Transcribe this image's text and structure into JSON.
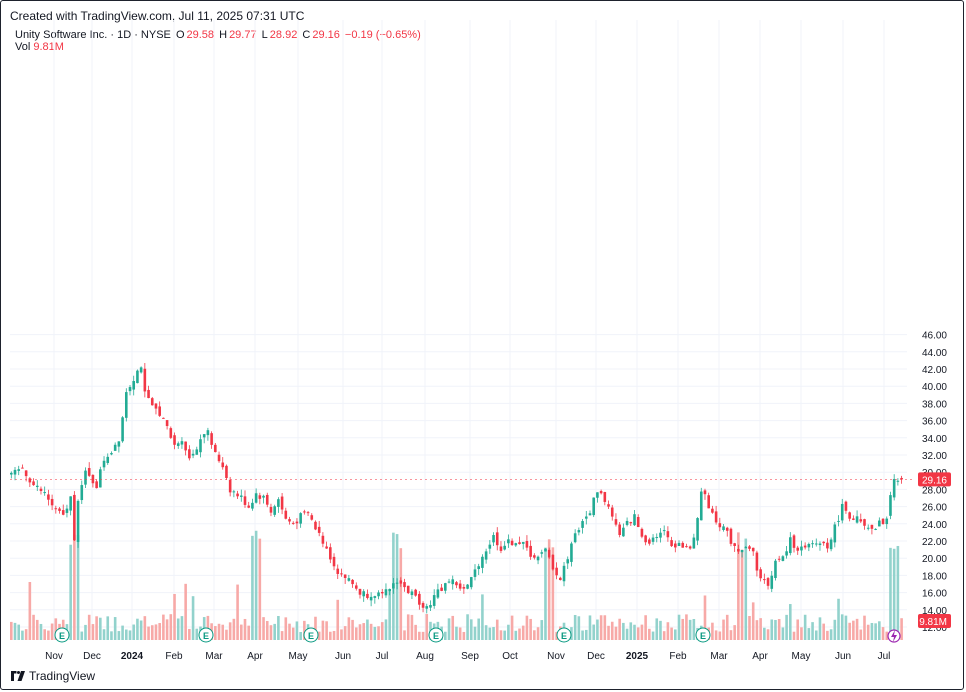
{
  "header": {
    "created": "Created with TradingView.com, Jul 11, 2025 07:31 UTC"
  },
  "legend": {
    "symbol": "Unity Software Inc. · 1D · NYSE",
    "o_label": "O",
    "o_value": "29.58",
    "h_label": "H",
    "h_value": "29.77",
    "l_label": "L",
    "l_value": "28.92",
    "c_label": "C",
    "c_value": "29.16",
    "change": "−0.19 (−0.65%)",
    "vol_label": "Vol",
    "vol_value": "9.81M"
  },
  "footer": {
    "brand": "TradingView"
  },
  "colors": {
    "up": "#22ab94",
    "down": "#f23645",
    "up_vol": "#92d2cc",
    "down_vol": "#f7a9a7",
    "grid": "#f0f3fa"
  },
  "chart_data": {
    "type": "candlestick",
    "ylim": [
      11.5,
      46.5
    ],
    "y_ticks": [
      "12.00",
      "14.00",
      "16.00",
      "18.00",
      "20.00",
      "22.00",
      "24.00",
      "26.00",
      "28.00",
      "30.00",
      "32.00",
      "34.00",
      "36.00",
      "38.00",
      "40.00",
      "42.00",
      "44.00",
      "46.00"
    ],
    "x_ticks": [
      "Nov",
      "Dec",
      "2024",
      "Feb",
      "Mar",
      "Apr",
      "May",
      "Jun",
      "Jul",
      "Aug",
      "Sep",
      "Oct",
      "Nov",
      "Dec",
      "2025",
      "Feb",
      "Mar",
      "Apr",
      "May",
      "Jun",
      "Jul"
    ],
    "last_price_label": "29.16",
    "last_volume_label": "9.81M",
    "earnings_marker": "E",
    "earnings_count": 7,
    "close_path": [
      [
        0,
        29.5
      ],
      [
        3,
        30.5
      ],
      [
        6,
        28.5
      ],
      [
        9,
        27.5
      ],
      [
        12,
        25.5
      ],
      [
        14,
        24.8
      ],
      [
        16,
        27.0
      ],
      [
        17,
        22.5
      ],
      [
        18,
        27.0
      ],
      [
        20,
        29.8
      ],
      [
        23,
        28.5
      ],
      [
        25,
        31.5
      ],
      [
        27,
        32.5
      ],
      [
        29,
        34.0
      ],
      [
        30,
        36.5
      ],
      [
        31,
        39.5
      ],
      [
        33,
        41.0
      ],
      [
        35,
        42.5
      ],
      [
        36,
        39.0
      ],
      [
        38,
        37.5
      ],
      [
        40,
        37.0
      ],
      [
        42,
        35.0
      ],
      [
        44,
        33.0
      ],
      [
        46,
        34.0
      ],
      [
        48,
        31.5
      ],
      [
        50,
        33.0
      ],
      [
        52,
        34.8
      ],
      [
        53,
        34.5
      ],
      [
        55,
        32.0
      ],
      [
        57,
        30.8
      ],
      [
        59,
        28.0
      ],
      [
        62,
        27.0
      ],
      [
        64,
        26.0
      ],
      [
        66,
        27.5
      ],
      [
        68,
        27.0
      ],
      [
        70,
        25.5
      ],
      [
        72,
        26.8
      ],
      [
        74,
        24.5
      ],
      [
        76,
        24.0
      ],
      [
        78,
        24.8
      ],
      [
        80,
        25.2
      ],
      [
        82,
        23.5
      ],
      [
        84,
        22.0
      ],
      [
        86,
        20.2
      ],
      [
        88,
        18.5
      ],
      [
        90,
        17.8
      ],
      [
        92,
        17.0
      ],
      [
        94,
        16.0
      ],
      [
        96,
        15.8
      ],
      [
        98,
        16.0
      ],
      [
        100,
        15.5
      ],
      [
        102,
        16.5
      ],
      [
        104,
        17.5
      ],
      [
        106,
        16.5
      ],
      [
        108,
        15.8
      ],
      [
        110,
        15.0
      ],
      [
        112,
        14.3
      ],
      [
        114,
        15.5
      ],
      [
        116,
        16.5
      ],
      [
        118,
        17.5
      ],
      [
        120,
        17.0
      ],
      [
        122,
        16.2
      ],
      [
        124,
        17.5
      ],
      [
        126,
        19.5
      ],
      [
        128,
        21.0
      ],
      [
        130,
        22.5
      ],
      [
        132,
        21.2
      ],
      [
        134,
        21.8
      ],
      [
        136,
        22.0
      ],
      [
        138,
        21.5
      ],
      [
        140,
        20.5
      ],
      [
        142,
        20.0
      ],
      [
        144,
        20.8
      ],
      [
        146,
        19.0
      ],
      [
        148,
        17.5
      ],
      [
        150,
        20.2
      ],
      [
        152,
        23.0
      ],
      [
        154,
        24.0
      ],
      [
        156,
        25.5
      ],
      [
        158,
        28.0
      ],
      [
        160,
        26.8
      ],
      [
        162,
        25.0
      ],
      [
        164,
        22.5
      ],
      [
        166,
        24.0
      ],
      [
        168,
        24.8
      ],
      [
        170,
        22.5
      ],
      [
        172,
        22.0
      ],
      [
        174,
        22.8
      ],
      [
        176,
        23.0
      ],
      [
        178,
        21.5
      ],
      [
        180,
        21.8
      ],
      [
        182,
        21.0
      ],
      [
        184,
        22.0
      ],
      [
        186,
        28.0
      ],
      [
        188,
        26.0
      ],
      [
        190,
        24.5
      ],
      [
        192,
        23.5
      ],
      [
        194,
        22.0
      ],
      [
        196,
        21.0
      ],
      [
        198,
        21.5
      ],
      [
        200,
        20.5
      ],
      [
        202,
        17.5
      ],
      [
        204,
        17.0
      ],
      [
        206,
        19.5
      ],
      [
        208,
        20.0
      ],
      [
        210,
        22.0
      ],
      [
        212,
        21.2
      ],
      [
        214,
        21.0
      ],
      [
        216,
        21.5
      ],
      [
        218,
        21.8
      ],
      [
        220,
        21.5
      ],
      [
        222,
        23.5
      ],
      [
        224,
        26.0
      ],
      [
        226,
        25.0
      ],
      [
        228,
        24.5
      ],
      [
        230,
        23.5
      ],
      [
        232,
        23.0
      ],
      [
        234,
        24.0
      ],
      [
        236,
        24.5
      ],
      [
        238,
        29.5
      ],
      [
        240,
        29.16
      ]
    ]
  }
}
